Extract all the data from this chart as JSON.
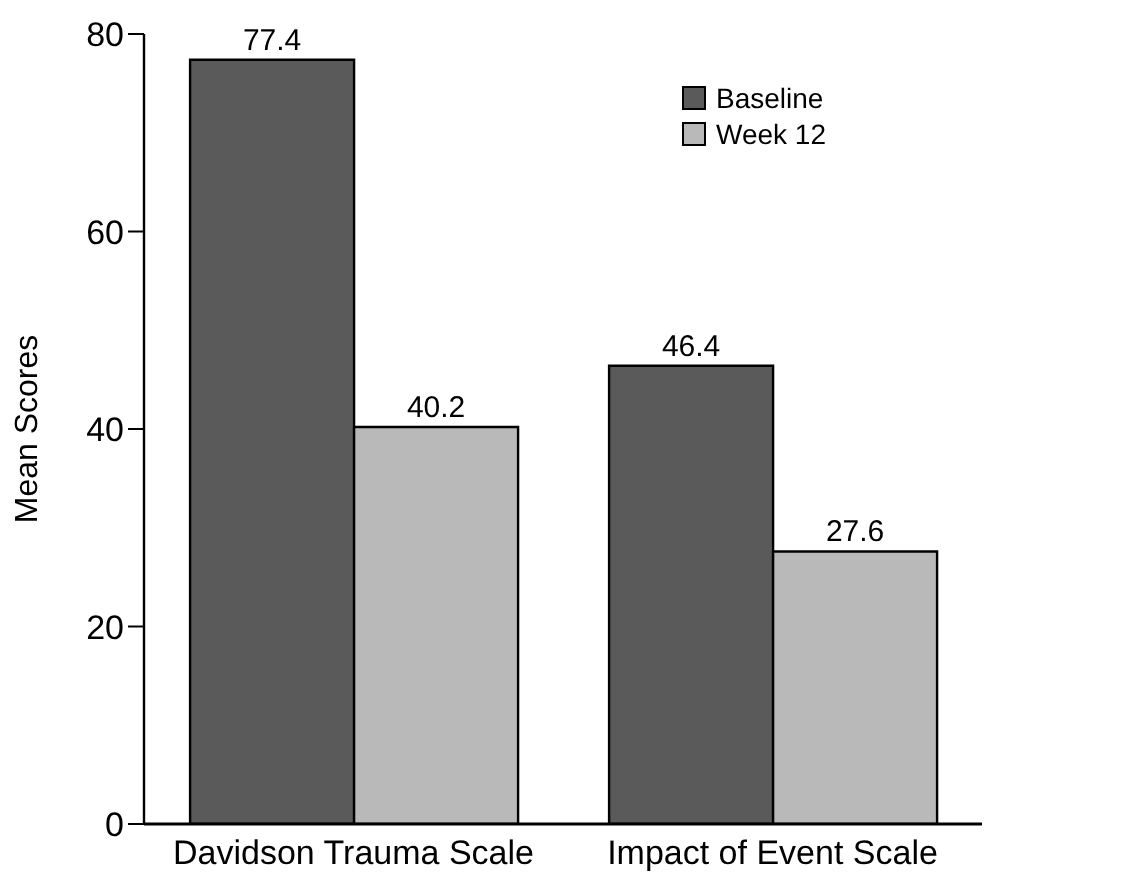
{
  "chart_data": {
    "type": "bar",
    "ylabel": "Mean Scores",
    "categories": [
      "Davidson Trauma Scale",
      "Impact of Event Scale"
    ],
    "series": [
      {
        "name": "Baseline",
        "color": "#5a5a5a",
        "values": [
          77.4,
          46.4
        ]
      },
      {
        "name": "Week 12",
        "color": "#b9b9b9",
        "values": [
          40.2,
          27.6
        ]
      }
    ],
    "ylim": [
      0,
      80
    ],
    "yticks": [
      0,
      20,
      40,
      60,
      80
    ],
    "data_labels": true,
    "legend": "top right",
    "grid": false
  }
}
